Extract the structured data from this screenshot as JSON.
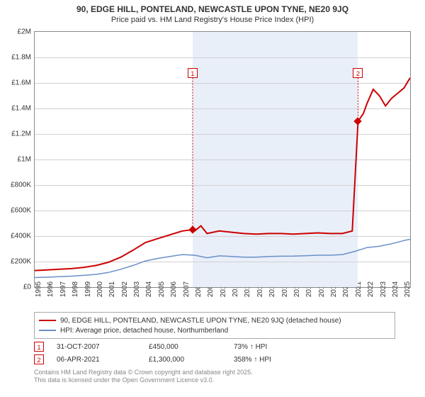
{
  "title": "90, EDGE HILL, PONTELAND, NEWCASTLE UPON TYNE, NE20 9JQ",
  "subtitle": "Price paid vs. HM Land Registry's House Price Index (HPI)",
  "chart": {
    "type": "line",
    "background_color": "#ffffff",
    "grid_color": "#d0d0d0",
    "border_color": "#888888",
    "shaded_band_color": "#e9eff9",
    "xlim": [
      1995,
      2025.5
    ],
    "ylim": [
      0,
      2000000
    ],
    "ytick_step": 200000,
    "ytick_labels": [
      "£0",
      "£200K",
      "£400K",
      "£600K",
      "£800K",
      "£1M",
      "£1.2M",
      "£1.4M",
      "£1.6M",
      "£1.8M",
      "£2M"
    ],
    "xticks": [
      1995,
      1996,
      1997,
      1998,
      1999,
      2000,
      2001,
      2002,
      2003,
      2004,
      2005,
      2006,
      2007,
      2008,
      2009,
      2010,
      2011,
      2012,
      2013,
      2014,
      2015,
      2016,
      2017,
      2018,
      2019,
      2020,
      2021,
      2022,
      2023,
      2024,
      2025
    ],
    "tick_fontsize": 10,
    "shaded_band": {
      "x_from": 2007.83,
      "x_to": 2021.27
    },
    "series": [
      {
        "id": "price_paid",
        "color": "#cc0000",
        "line_width": 2,
        "points": [
          [
            1995,
            130000
          ],
          [
            1996,
            135000
          ],
          [
            1997,
            140000
          ],
          [
            1998,
            145000
          ],
          [
            1999,
            155000
          ],
          [
            2000,
            170000
          ],
          [
            2001,
            195000
          ],
          [
            2002,
            235000
          ],
          [
            2003,
            290000
          ],
          [
            2004,
            350000
          ],
          [
            2005,
            380000
          ],
          [
            2006,
            410000
          ],
          [
            2007,
            440000
          ],
          [
            2007.83,
            450000
          ],
          [
            2008,
            440000
          ],
          [
            2008.5,
            480000
          ],
          [
            2009,
            420000
          ],
          [
            2010,
            440000
          ],
          [
            2011,
            430000
          ],
          [
            2012,
            420000
          ],
          [
            2013,
            415000
          ],
          [
            2014,
            420000
          ],
          [
            2015,
            420000
          ],
          [
            2016,
            415000
          ],
          [
            2017,
            420000
          ],
          [
            2018,
            425000
          ],
          [
            2019,
            420000
          ],
          [
            2020,
            420000
          ],
          [
            2020.8,
            440000
          ],
          [
            2021.27,
            1300000
          ],
          [
            2021.7,
            1360000
          ],
          [
            2022,
            1440000
          ],
          [
            2022.5,
            1550000
          ],
          [
            2023,
            1500000
          ],
          [
            2023.5,
            1420000
          ],
          [
            2024,
            1480000
          ],
          [
            2024.5,
            1520000
          ],
          [
            2025,
            1560000
          ],
          [
            2025.5,
            1640000
          ]
        ]
      },
      {
        "id": "hpi",
        "color": "#6a8fc7",
        "line_width": 1.5,
        "points": [
          [
            1995,
            75000
          ],
          [
            1996,
            78000
          ],
          [
            1997,
            82000
          ],
          [
            1998,
            86000
          ],
          [
            1999,
            92000
          ],
          [
            2000,
            100000
          ],
          [
            2001,
            115000
          ],
          [
            2002,
            140000
          ],
          [
            2003,
            170000
          ],
          [
            2004,
            205000
          ],
          [
            2005,
            225000
          ],
          [
            2006,
            240000
          ],
          [
            2007,
            255000
          ],
          [
            2008,
            250000
          ],
          [
            2009,
            230000
          ],
          [
            2010,
            245000
          ],
          [
            2011,
            240000
          ],
          [
            2012,
            235000
          ],
          [
            2013,
            235000
          ],
          [
            2014,
            240000
          ],
          [
            2015,
            242000
          ],
          [
            2016,
            243000
          ],
          [
            2017,
            246000
          ],
          [
            2018,
            250000
          ],
          [
            2019,
            250000
          ],
          [
            2020,
            255000
          ],
          [
            2021,
            280000
          ],
          [
            2022,
            310000
          ],
          [
            2023,
            320000
          ],
          [
            2024,
            340000
          ],
          [
            2025,
            365000
          ],
          [
            2025.5,
            375000
          ]
        ]
      }
    ],
    "sale_markers": [
      {
        "n": "1",
        "x": 2007.83,
        "y": 450000,
        "label_y": 1680000
      },
      {
        "n": "2",
        "x": 2021.27,
        "y": 1300000,
        "label_y": 1680000
      }
    ]
  },
  "legend": {
    "items": [
      {
        "color": "#cc0000",
        "label": "90, EDGE HILL, PONTELAND, NEWCASTLE UPON TYNE, NE20 9JQ (detached house)"
      },
      {
        "color": "#6a8fc7",
        "label": "HPI: Average price, detached house, Northumberland"
      }
    ]
  },
  "sales_table": [
    {
      "n": "1",
      "date": "31-OCT-2007",
      "price": "£450,000",
      "hpi": "73% ↑ HPI"
    },
    {
      "n": "2",
      "date": "06-APR-2021",
      "price": "£1,300,000",
      "hpi": "358% ↑ HPI"
    }
  ],
  "footer": [
    "Contains HM Land Registry data © Crown copyright and database right 2025.",
    "This data is licensed under the Open Government Licence v3.0."
  ]
}
